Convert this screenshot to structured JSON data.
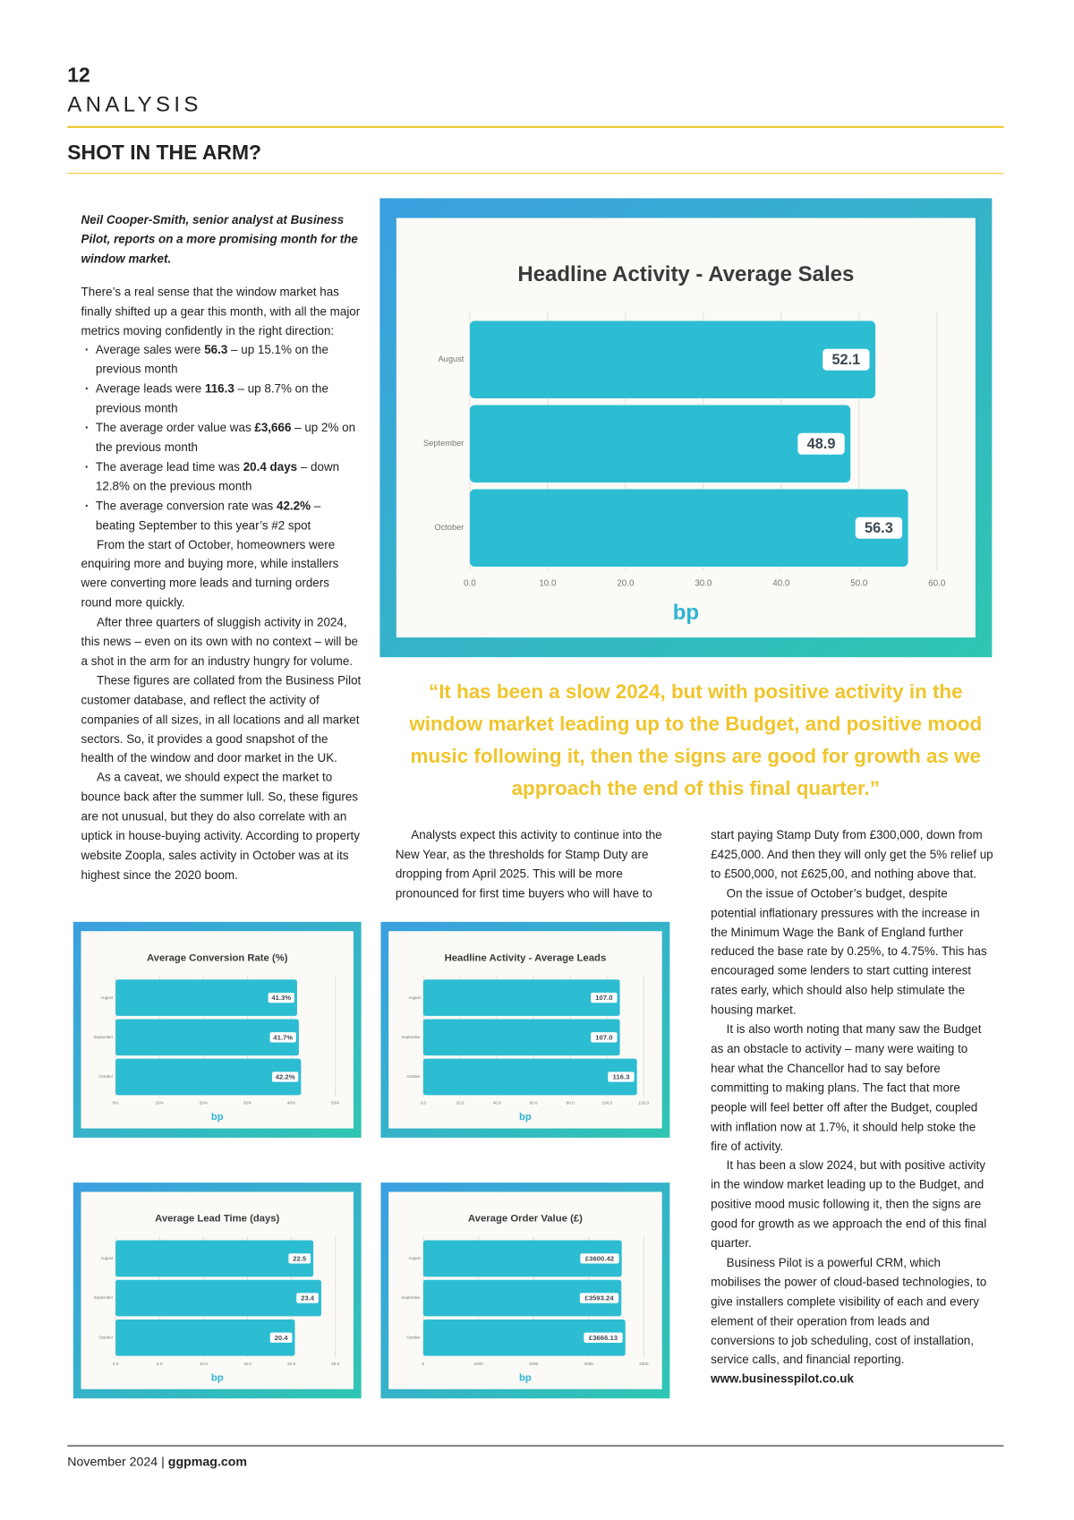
{
  "header": {
    "page_number": "12",
    "section": "ANALYSIS",
    "title": "SHOT IN THE ARM?"
  },
  "intro": "Neil Cooper-Smith, senior analyst at Business Pilot, reports on a more promising month for the window market.",
  "lead_paragraph": "There’s a real sense that the window market has finally shifted up a gear this month, with all the major metrics moving confidently in the right direction:",
  "bullets": [
    [
      "Average sales were ",
      "56.3",
      " – up 15.1% on the previous month"
    ],
    [
      "Average leads were ",
      "116.3",
      " – up 8.7% on the previous month"
    ],
    [
      "The average order value was ",
      "£3,666",
      " – up 2% on the previous month"
    ],
    [
      "The average lead time was ",
      "20.4 days",
      " – down 12.8% on the previous month"
    ],
    [
      "The average conversion rate was ",
      "42.2%",
      " – beating September to this year’s #2 spot"
    ]
  ],
  "left_paragraphs": [
    "From the start of October, homeowners were enquiring more and buying more, while installers were converting more leads and turning orders round more quickly.",
    "After three quarters of sluggish activity in 2024, this news – even on its own with no context – will be a shot in the arm for an industry hungry for volume.",
    "These figures are collated from the Business Pilot customer database, and reflect the activity of companies of all sizes, in all locations and all market sectors. So, it provides a good snapshot of the health of the window and door market in the UK.",
    "As a caveat, we should expect the market to bounce back after the summer lull. So, these figures are not unusual, but they do also correlate with an uptick in house-buying activity. According to property website Zoopla, sales activity in October was at its highest since the 2020 boom."
  ],
  "quote": "“It has been a slow 2024, but with positive activity in the window market leading up to the Budget, and positive mood music following it, then the signs are good for growth as we approach the end of this final quarter.”",
  "middle_paragraphs": [
    "Analysts expect this activity to continue into the New Year, as the thresholds for Stamp Duty are dropping from April 2025. This will be more pronounced for first time buyers who will have to"
  ],
  "right_paragraphs": [
    "start paying Stamp Duty from £300,000, down from £425,000. And then they will only get the 5% relief up to £500,000, not £625,00, and nothing above that.",
    "On the issue of October’s budget, despite potential inflationary pressures with the increase in the Minimum Wage the Bank of England further reduced the base rate by 0.25%, to 4.75%. This has encouraged some lenders to start cutting interest rates early, which should also help stimulate the housing market.",
    "It is also worth noting that many saw the Budget as an obstacle to activity – many were waiting to hear what the Chancellor had to say before committing to making plans. The fact that more people will feel better off after the Budget, coupled with inflation now at 1.7%, it should help stoke the fire of activity.",
    "It has been a slow 2024, but with positive activity in the window market leading up to the Budget, and positive mood music following it, then the signs are good for growth as we approach the end of this final quarter.",
    "Business Pilot is a powerful CRM, which mobilises the power of cloud-based technologies, to give installers complete visibility of each and every element of their operation from leads and conversions to job scheduling, cost of installation, service calls, and financial reporting."
  ],
  "url": "www.businesspilot.co.uk",
  "logo": "bp",
  "footer": {
    "date": "November 2024",
    "separator": "|",
    "site": "ggpmag.com"
  },
  "chart_data": [
    {
      "type": "bar",
      "orientation": "horizontal",
      "title": "Headline Activity - Average Sales",
      "color": "#2dbdd2",
      "categories": [
        "August",
        "September",
        "October"
      ],
      "values": [
        52.1,
        48.9,
        56.3
      ],
      "xlim": [
        0,
        60
      ],
      "xticks": [
        {
          "value": 0,
          "label": "0.0"
        },
        {
          "value": 10,
          "label": "10.0"
        },
        {
          "value": 20,
          "label": "20.0"
        },
        {
          "value": 30,
          "label": "30.0"
        },
        {
          "value": 40,
          "label": "40.0"
        },
        {
          "value": 50,
          "label": "50.0"
        },
        {
          "value": 60,
          "label": "60.0"
        }
      ],
      "grid": true
    },
    {
      "type": "bar",
      "orientation": "horizontal",
      "title": "Average Conversion Rate (%)",
      "color": "#2dbdd2",
      "categories": [
        "August",
        "September",
        "October"
      ],
      "values": [
        41.3,
        41.7,
        42.2
      ],
      "value_labels": [
        "41.3%",
        "41.7%",
        "42.2%"
      ],
      "xlim": [
        0,
        50
      ],
      "xticks": [
        {
          "value": 0,
          "label": "0%"
        },
        {
          "value": 10,
          "label": "10%"
        },
        {
          "value": 20,
          "label": "20%"
        },
        {
          "value": 30,
          "label": "30%"
        },
        {
          "value": 40,
          "label": "40%"
        },
        {
          "value": 50,
          "label": "50%"
        }
      ],
      "grid": true
    },
    {
      "type": "bar",
      "orientation": "horizontal",
      "title": "Headline Activity - Average Leads",
      "color": "#2dbdd2",
      "categories": [
        "August",
        "September",
        "October"
      ],
      "values": [
        107.0,
        107.0,
        116.3
      ],
      "value_labels": [
        "107.0",
        "107.0",
        "116.3"
      ],
      "xlim": [
        0,
        120
      ],
      "xticks": [
        {
          "value": 0,
          "label": "0.0"
        },
        {
          "value": 20,
          "label": "20.0"
        },
        {
          "value": 40,
          "label": "40.0"
        },
        {
          "value": 60,
          "label": "60.0"
        },
        {
          "value": 80,
          "label": "80.0"
        },
        {
          "value": 100,
          "label": "100.0"
        },
        {
          "value": 120,
          "label": "120.0"
        }
      ],
      "grid": true
    },
    {
      "type": "bar",
      "orientation": "horizontal",
      "title": "Average Lead Time (days)",
      "color": "#2dbdd2",
      "categories": [
        "August",
        "September",
        "October"
      ],
      "values": [
        22.5,
        23.4,
        20.4
      ],
      "xlim": [
        0,
        25
      ],
      "xticks": [
        {
          "value": 0,
          "label": "0.0"
        },
        {
          "value": 5,
          "label": "5.0"
        },
        {
          "value": 10,
          "label": "10.0"
        },
        {
          "value": 15,
          "label": "15.0"
        },
        {
          "value": 20,
          "label": "20.0"
        },
        {
          "value": 25,
          "label": "25.0"
        }
      ],
      "grid": true
    },
    {
      "type": "bar",
      "orientation": "horizontal",
      "title": "Average Order Value (£)",
      "color": "#2dbdd2",
      "categories": [
        "August",
        "September",
        "October"
      ],
      "values": [
        3600.42,
        3593.24,
        3666.13
      ],
      "value_labels": [
        "£3600.42",
        "£3593.24",
        "£3666.13"
      ],
      "xlim": [
        0,
        4000
      ],
      "xticks": [
        0,
        1000,
        2000,
        3000,
        4000
      ],
      "grid": true
    }
  ]
}
